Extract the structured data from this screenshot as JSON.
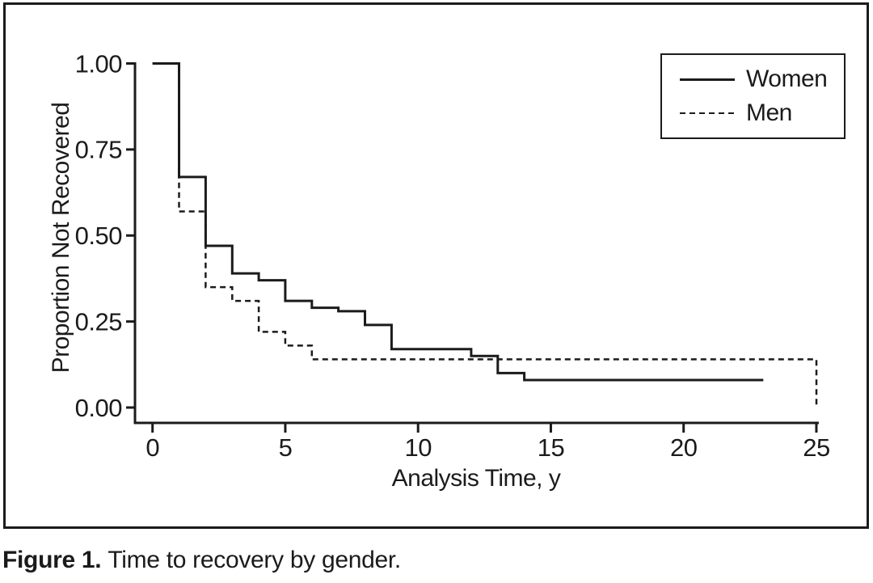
{
  "figure": {
    "caption_label": "Figure 1.",
    "caption_text": "Time to recovery by gender."
  },
  "chart_data": {
    "type": "line",
    "subtype": "kaplan-meier-step",
    "title": "",
    "xlabel": "Analysis Time, y",
    "ylabel": "Proportion Not Recovered",
    "xlim": [
      0,
      25
    ],
    "ylim": [
      0,
      1
    ],
    "x_ticks": [
      "0",
      "5",
      "10",
      "15",
      "20",
      "25"
    ],
    "y_ticks": [
      "0.00",
      "0.25",
      "0.50",
      "0.75",
      "1.00"
    ],
    "grid": false,
    "legend_position": "top-right",
    "line_color": "#1b1b1b",
    "series": [
      {
        "name": "Women",
        "line_style": "solid",
        "color": "#1b1b1b",
        "steps": [
          [
            0,
            1.0
          ],
          [
            1,
            0.67
          ],
          [
            2,
            0.47
          ],
          [
            3,
            0.39
          ],
          [
            4,
            0.37
          ],
          [
            5,
            0.31
          ],
          [
            6,
            0.29
          ],
          [
            7,
            0.28
          ],
          [
            8,
            0.24
          ],
          [
            9,
            0.17
          ],
          [
            12,
            0.15
          ],
          [
            13,
            0.1
          ],
          [
            14,
            0.08
          ]
        ],
        "end_x": 23
      },
      {
        "name": "Men",
        "line_style": "dashed",
        "color": "#1b1b1b",
        "steps": [
          [
            0,
            1.0
          ],
          [
            1,
            0.57
          ],
          [
            2,
            0.35
          ],
          [
            3,
            0.31
          ],
          [
            4,
            0.22
          ],
          [
            5,
            0.18
          ],
          [
            6,
            0.14
          ],
          [
            25,
            0.0
          ]
        ],
        "end_x": 25
      }
    ]
  }
}
